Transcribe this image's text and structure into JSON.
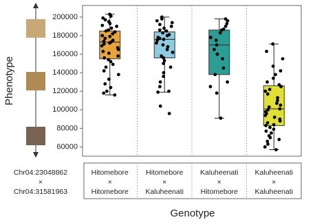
{
  "chart_data": {
    "type": "box",
    "ylabel": "Phenotype",
    "xlabel": "Genotype",
    "row_labels": [
      "Chr04:23048862",
      "×",
      "Chr04:31581963"
    ],
    "categories": [
      [
        "Hitomebore",
        "×",
        "Hitomebore"
      ],
      [
        "Hitomebore",
        "×",
        "Kaluheenati"
      ],
      [
        "Kaluheenati",
        "×",
        "Hitomebore"
      ],
      [
        "Kaluheenati",
        "×",
        "Kaluheenati"
      ]
    ],
    "ylim": [
      50000,
      212500
    ],
    "yticks": [
      60000,
      80000,
      100000,
      120000,
      140000,
      160000,
      180000,
      200000
    ],
    "series": [
      {
        "color": "#e8a33a",
        "min": 116000,
        "q1": 155000,
        "median": 173000,
        "q3": 185000,
        "max": 203000,
        "points": [
          203000,
          201000,
          199000,
          197000,
          195000,
          193000,
          191000,
          190000,
          188000,
          186000,
          185000,
          184000,
          182000,
          180000,
          179000,
          177000,
          175000,
          174000,
          173000,
          172000,
          171000,
          169000,
          167000,
          165000,
          163000,
          161000,
          158000,
          156000,
          154000,
          152000,
          149000,
          146000,
          142000,
          138000,
          133000,
          128000,
          124000,
          120000,
          118000,
          116000
        ]
      },
      {
        "color": "#8ccbe0",
        "min": 119000,
        "q1": 156000,
        "median": 176000,
        "q3": 184000,
        "max": 200000,
        "points": [
          200000,
          198000,
          196000,
          194000,
          192000,
          190000,
          188000,
          186000,
          185000,
          183000,
          181000,
          180000,
          178000,
          177000,
          176000,
          175000,
          172000,
          170000,
          168000,
          165000,
          162000,
          158000,
          156000,
          153000,
          150000,
          146000,
          140000,
          136000,
          130000,
          125000,
          120000,
          119000,
          104000,
          96000
        ]
      },
      {
        "color": "#2a9d94",
        "min": 91000,
        "q1": 138000,
        "median": 170000,
        "q3": 186000,
        "max": 198000,
        "points": [
          198000,
          196000,
          193000,
          190000,
          187000,
          186000,
          183000,
          178000,
          175000,
          170000,
          165000,
          160000,
          155000,
          145000,
          138000,
          130000,
          125000,
          118000,
          91000
        ]
      },
      {
        "color": "#e0e034",
        "min": 57000,
        "q1": 83000,
        "median": 101000,
        "q3": 126000,
        "max": 171000,
        "points": [
          171000,
          163000,
          155000,
          147000,
          142000,
          138000,
          134000,
          130000,
          127000,
          125000,
          122000,
          120000,
          117000,
          113000,
          110000,
          107000,
          105000,
          103000,
          101000,
          100000,
          98000,
          96000,
          94000,
          92000,
          90000,
          88000,
          86000,
          84000,
          83000,
          81000,
          79000,
          77000,
          75000,
          72000,
          70000,
          68000,
          66000,
          63000,
          60000,
          57000
        ]
      }
    ]
  }
}
